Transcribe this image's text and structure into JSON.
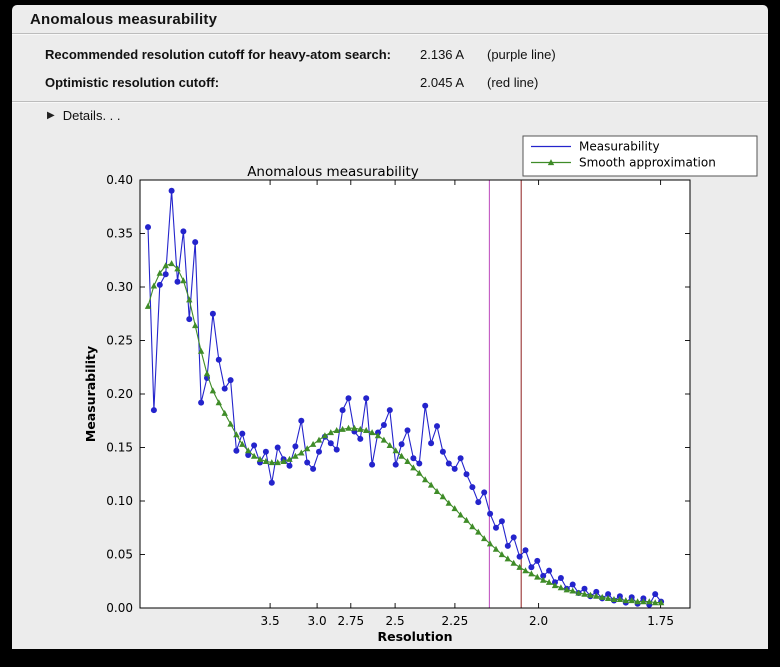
{
  "header": {
    "title": "Anomalous measurability"
  },
  "summary": {
    "rows": [
      {
        "label": "Recommended resolution cutoff for heavy-atom search:",
        "value": "2.136 A",
        "note": "(purple line)"
      },
      {
        "label": "Optimistic resolution cutoff:",
        "value": "2.045 A",
        "note": "(red line)"
      }
    ],
    "details_icon_glyph": "▶",
    "details_label": "Details. . ."
  },
  "chart_data": {
    "type": "line",
    "title": "Anomalous measurability",
    "xlabel": "Resolution",
    "ylabel": "Measurability",
    "legend_position": "upper right",
    "grid": false,
    "x_axis": {
      "transform": "1/d^2",
      "tick_d_values": [
        3.5,
        3.0,
        2.75,
        2.5,
        2.25,
        2.0,
        1.75
      ],
      "tick_labels": [
        "3.5",
        "3.0",
        "2.75",
        "2.5",
        "2.25",
        "2.0",
        "1.75"
      ],
      "xlim_inv_d_sq": [
        0.0,
        0.345
      ]
    },
    "y_axis": {
      "ylim": [
        0.0,
        0.4
      ],
      "tick_values": [
        0.0,
        0.05,
        0.1,
        0.15,
        0.2,
        0.25,
        0.3,
        0.35,
        0.4
      ],
      "tick_labels": [
        "0.00",
        "0.05",
        "0.10",
        "0.15",
        "0.20",
        "0.25",
        "0.30",
        "0.35",
        "0.40"
      ]
    },
    "x_inv_d_sq": {
      "start": 0.005,
      "step": 0.0037,
      "count": 88
    },
    "series": [
      {
        "name": "Measurability",
        "color": "#2424cc",
        "marker": "circle",
        "values": [
          0.356,
          0.185,
          0.302,
          0.312,
          0.39,
          0.305,
          0.352,
          0.27,
          0.342,
          0.192,
          0.215,
          0.275,
          0.232,
          0.205,
          0.213,
          0.147,
          0.163,
          0.143,
          0.152,
          0.136,
          0.146,
          0.117,
          0.15,
          0.139,
          0.133,
          0.151,
          0.175,
          0.136,
          0.13,
          0.146,
          0.16,
          0.154,
          0.148,
          0.185,
          0.196,
          0.165,
          0.158,
          0.196,
          0.134,
          0.164,
          0.171,
          0.185,
          0.134,
          0.153,
          0.166,
          0.14,
          0.135,
          0.189,
          0.154,
          0.17,
          0.146,
          0.135,
          0.13,
          0.14,
          0.125,
          0.113,
          0.099,
          0.108,
          0.088,
          0.075,
          0.081,
          0.058,
          0.066,
          0.048,
          0.054,
          0.038,
          0.044,
          0.03,
          0.035,
          0.024,
          0.028,
          0.018,
          0.022,
          0.014,
          0.018,
          0.011,
          0.015,
          0.009,
          0.013,
          0.007,
          0.011,
          0.005,
          0.01,
          0.004,
          0.009,
          0.003,
          0.013,
          0.006
        ]
      },
      {
        "name": "Smooth approximation",
        "color": "#3f8c28",
        "marker": "triangle",
        "values": [
          0.282,
          0.301,
          0.313,
          0.32,
          0.322,
          0.317,
          0.306,
          0.288,
          0.264,
          0.24,
          0.219,
          0.203,
          0.192,
          0.182,
          0.172,
          0.162,
          0.153,
          0.147,
          0.142,
          0.139,
          0.137,
          0.136,
          0.136,
          0.137,
          0.139,
          0.142,
          0.145,
          0.149,
          0.153,
          0.157,
          0.161,
          0.164,
          0.166,
          0.167,
          0.168,
          0.168,
          0.167,
          0.166,
          0.164,
          0.161,
          0.157,
          0.152,
          0.147,
          0.142,
          0.137,
          0.131,
          0.126,
          0.12,
          0.115,
          0.109,
          0.104,
          0.098,
          0.093,
          0.087,
          0.082,
          0.076,
          0.071,
          0.065,
          0.06,
          0.055,
          0.05,
          0.046,
          0.042,
          0.038,
          0.035,
          0.032,
          0.029,
          0.026,
          0.024,
          0.021,
          0.019,
          0.017,
          0.016,
          0.014,
          0.013,
          0.012,
          0.011,
          0.01,
          0.009,
          0.008,
          0.008,
          0.007,
          0.007,
          0.006,
          0.006,
          0.006,
          0.005,
          0.005
        ]
      }
    ],
    "vlines": [
      {
        "resolution_A": 2.136,
        "inv_d_sq": 0.2192,
        "color": "#c257c2",
        "label": "purple line"
      },
      {
        "resolution_A": 2.045,
        "inv_d_sq": 0.2391,
        "color": "#993333",
        "label": "red line"
      }
    ]
  },
  "colors": {
    "panel_bg": "#ececec",
    "frame_bg": "#000000",
    "plot_bg": "#ffffff",
    "axis": "#000000",
    "legend_border": "#555555"
  }
}
